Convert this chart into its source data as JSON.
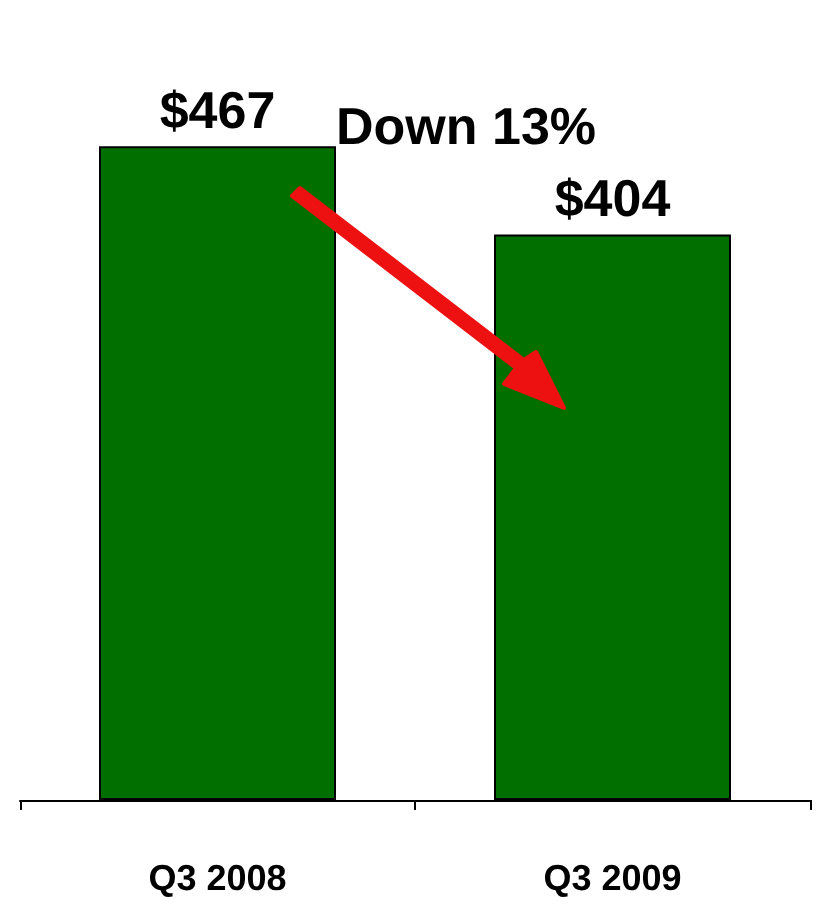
{
  "chart_data": {
    "type": "bar",
    "categories": [
      "Q3 2008",
      "Q3 2009"
    ],
    "values": [
      467,
      404
    ],
    "value_labels": [
      "$467",
      "$404"
    ],
    "color": "#006f00",
    "annotations": [
      "Down 13%"
    ]
  }
}
